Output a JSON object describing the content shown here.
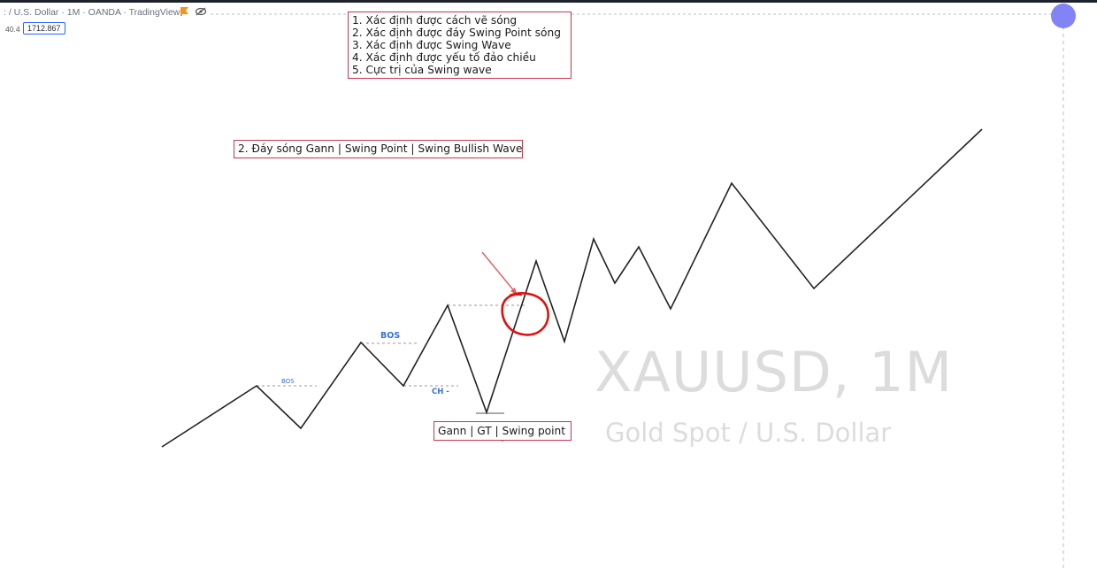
{
  "header": {
    "title": ": / U.S. Dollar · 1M · OANDA · TradingView",
    "flag_icon": "flag-icon",
    "visibility_icon": "eye-slash-icon",
    "small_value": "40.4",
    "price_value": "1712.867"
  },
  "annotations": {
    "checklist": [
      "1. Xác định được cách vẽ sóng",
      "2. Xác định được đáy Swing Point sóng",
      "3. Xác định được Swing Wave",
      "4. Xác định được yếu tố đảo chiều",
      "5. Cực trị của Swing wave"
    ],
    "section_label": "2. Đáy sóng Gann | Swing Point | Swing Bullish Wave",
    "gann_label": "Gann | GT | Swing point",
    "bos_small": "BOS",
    "bos_large": "BOS",
    "choch": "CH -"
  },
  "watermark": {
    "symbol": "XAUUSD, 1M",
    "description": "Gold Spot / U.S. Dollar"
  },
  "colors": {
    "line": "#222222",
    "annotation_border": "#c8354f",
    "bos_text": "#3a6fd8",
    "highlight_circle": "#e01010",
    "arrow": "#e06060"
  }
}
